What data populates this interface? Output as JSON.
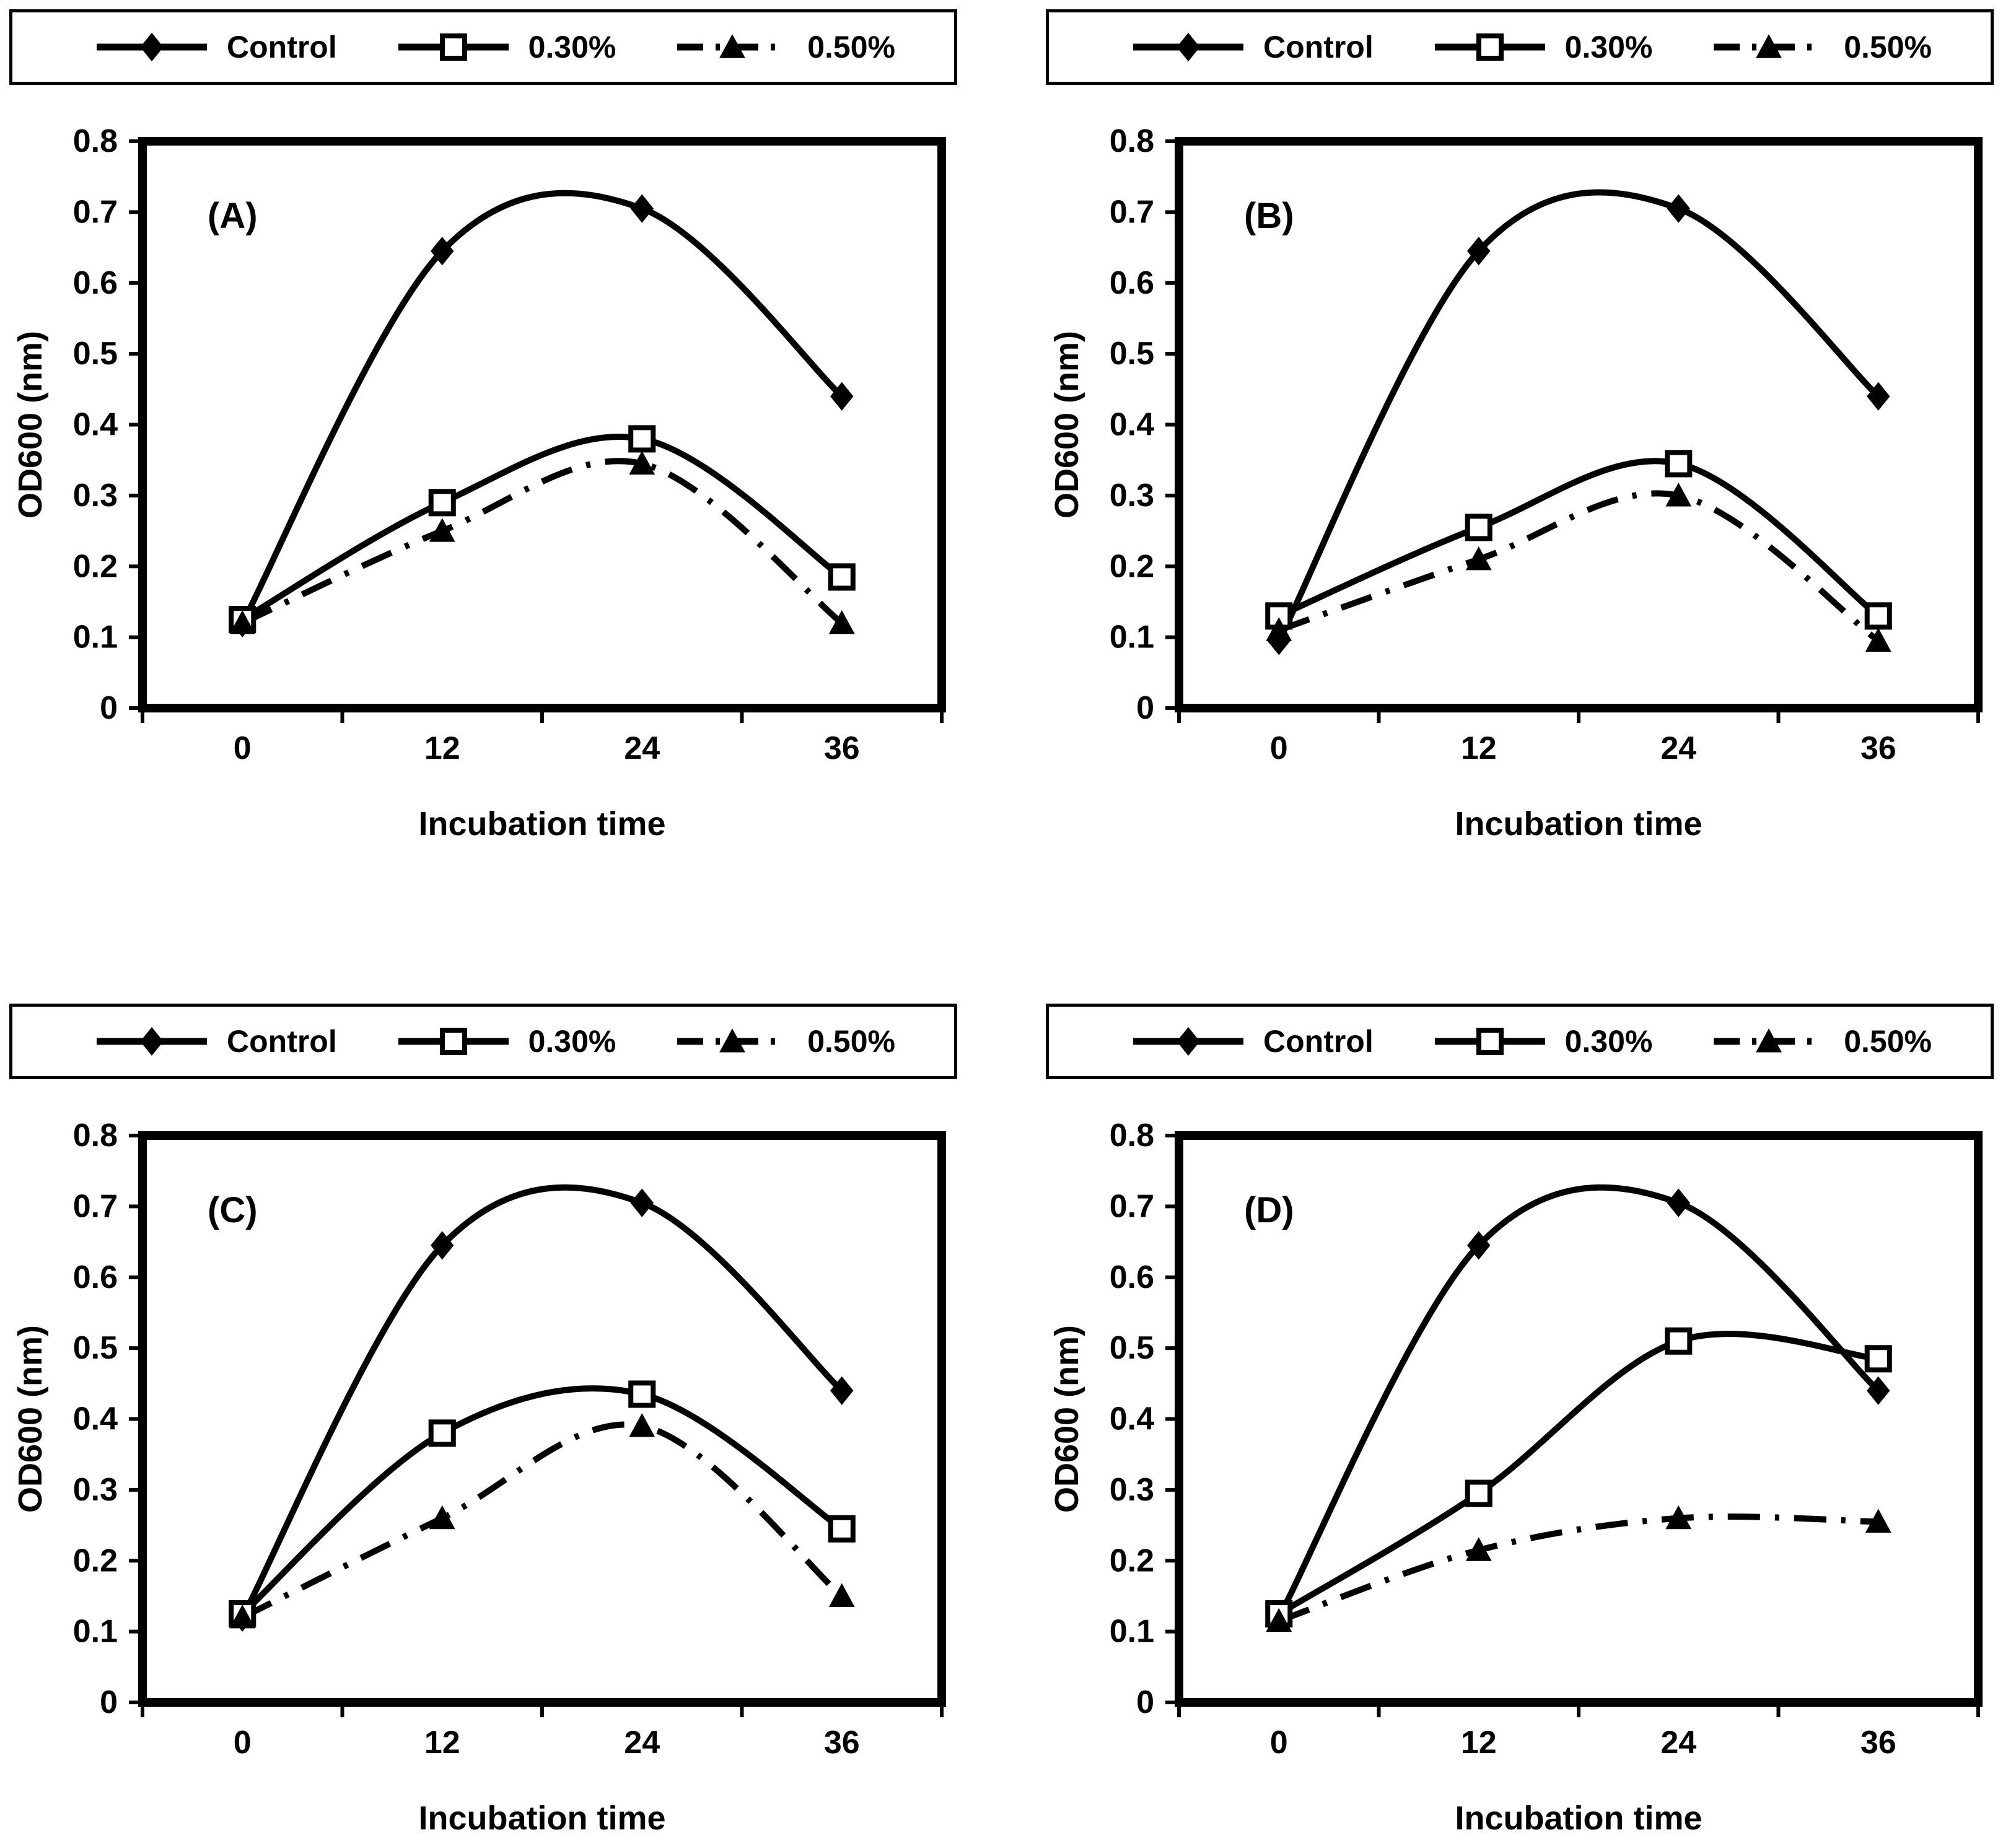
{
  "figure": {
    "background": "#ffffff",
    "ink_color": "#000000",
    "xlabel": "Incubation time",
    "ylabel": "OD600 (nm)",
    "legend": [
      {
        "label": "Control",
        "marker": "diamond-filled",
        "line": "solid"
      },
      {
        "label": "0.30%",
        "marker": "square-open",
        "line": "solid"
      },
      {
        "label": "0.50%",
        "marker": "triangle-filled",
        "line": "dash-dot"
      }
    ]
  },
  "chart_data": [
    {
      "type": "line",
      "panel_label": "(A)",
      "categories": [
        "0",
        "12",
        "24",
        "36"
      ],
      "series": [
        {
          "name": "Control",
          "marker": "diamond-filled",
          "line": "solid",
          "values": [
            0.12,
            0.645,
            0.705,
            0.44
          ]
        },
        {
          "name": "0.30%",
          "marker": "square-open",
          "line": "solid",
          "values": [
            0.125,
            0.29,
            0.38,
            0.185
          ]
        },
        {
          "name": "0.50%",
          "marker": "triangle-filled",
          "line": "dash-dot",
          "values": [
            0.12,
            0.25,
            0.345,
            0.12
          ]
        }
      ],
      "xlabel": "Incubation time",
      "ylabel": "OD600 (nm)",
      "ylim": [
        0,
        0.8
      ],
      "ytick_step": 0.1,
      "grid": false,
      "legend_position": "top"
    },
    {
      "type": "line",
      "panel_label": "(B)",
      "categories": [
        "0",
        "12",
        "24",
        "36"
      ],
      "series": [
        {
          "name": "Control",
          "marker": "diamond-filled",
          "line": "solid",
          "values": [
            0.095,
            0.645,
            0.705,
            0.44
          ]
        },
        {
          "name": "0.30%",
          "marker": "square-open",
          "line": "solid",
          "values": [
            0.13,
            0.255,
            0.345,
            0.13
          ]
        },
        {
          "name": "0.50%",
          "marker": "triangle-filled",
          "line": "dash-dot",
          "values": [
            0.11,
            0.21,
            0.3,
            0.095
          ]
        }
      ],
      "xlabel": "Incubation time",
      "ylabel": "OD600 (nm)",
      "ylim": [
        0,
        0.8
      ],
      "ytick_step": 0.1,
      "grid": false,
      "legend_position": "top"
    },
    {
      "type": "line",
      "panel_label": "(C)",
      "categories": [
        "0",
        "12",
        "24",
        "36"
      ],
      "series": [
        {
          "name": "Control",
          "marker": "diamond-filled",
          "line": "solid",
          "values": [
            0.12,
            0.645,
            0.705,
            0.44
          ]
        },
        {
          "name": "0.30%",
          "marker": "square-open",
          "line": "solid",
          "values": [
            0.125,
            0.38,
            0.435,
            0.245
          ]
        },
        {
          "name": "0.50%",
          "marker": "triangle-filled",
          "line": "dash-dot",
          "values": [
            0.12,
            0.26,
            0.39,
            0.15
          ]
        }
      ],
      "xlabel": "Incubation time",
      "ylabel": "OD600 (nm)",
      "ylim": [
        0,
        0.8
      ],
      "ytick_step": 0.1,
      "grid": false,
      "legend_position": "top"
    },
    {
      "type": "line",
      "panel_label": "(D)",
      "categories": [
        "0",
        "12",
        "24",
        "36"
      ],
      "series": [
        {
          "name": "Control",
          "marker": "diamond-filled",
          "line": "solid",
          "values": [
            0.12,
            0.645,
            0.705,
            0.44
          ]
        },
        {
          "name": "0.30%",
          "marker": "square-open",
          "line": "solid",
          "values": [
            0.125,
            0.295,
            0.51,
            0.485
          ]
        },
        {
          "name": "0.50%",
          "marker": "triangle-filled",
          "line": "dash-dot",
          "values": [
            0.115,
            0.215,
            0.26,
            0.255
          ]
        }
      ],
      "xlabel": "Incubation time",
      "ylabel": "OD600 (nm)",
      "ylim": [
        0,
        0.8
      ],
      "ytick_step": 0.1,
      "grid": false,
      "legend_position": "top"
    }
  ]
}
